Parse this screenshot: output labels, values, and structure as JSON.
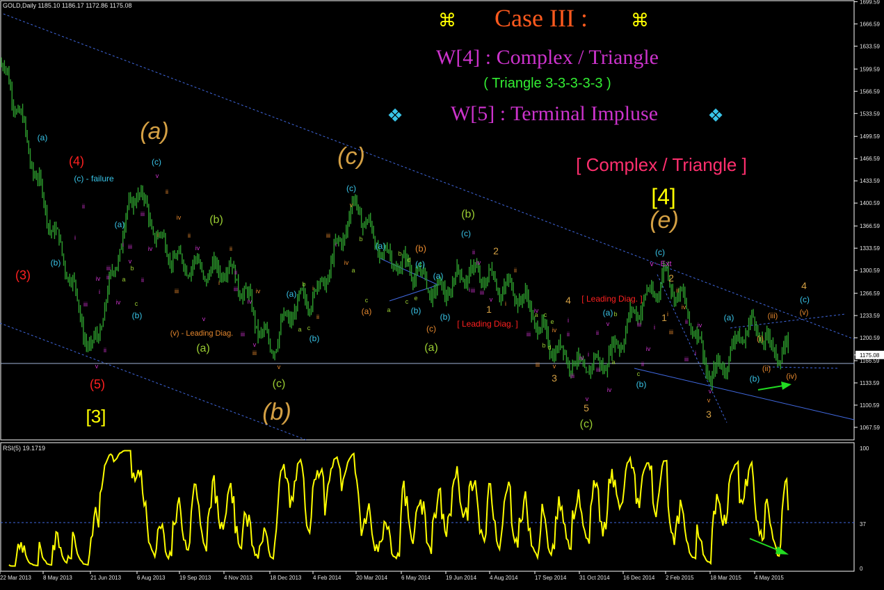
{
  "window": {
    "symbol_line": "GOLD,Daily   1185.10  1186.17  1172.86  1175.08",
    "rsi_label": "RSI(5) 19.1719"
  },
  "headline": {
    "case": "Case III :",
    "case_glyph": "⌘",
    "w4": "W[4] : Complex / Triangle",
    "triangle": "( Triangle 3-3-3-3-3 )",
    "w5": "W[5] : Terminal Impluse",
    "w5_glyph": "❖",
    "complex": "[ Complex / Triangle ]",
    "degree4": "[4]"
  },
  "colors": {
    "background": "#000000",
    "price_bars": "#2e9f2e",
    "rsi_line": "#ffff00",
    "channel": "#4169e1",
    "arrow": "#22dd22",
    "red": "#ff2020",
    "gold": "#d4a044",
    "cyan": "#39c4e8",
    "lime": "#9acd32",
    "magenta": "#cc33cc",
    "orange_roman": "#e6882e"
  },
  "axes": {
    "price_ticks": [
      "1699.59",
      "1666.59",
      "1633.59",
      "1599.59",
      "1566.59",
      "1533.59",
      "1499.59",
      "1466.59",
      "1433.59",
      "1400.59",
      "1366.59",
      "1333.59",
      "1300.59",
      "1266.59",
      "1233.59",
      "1200.59",
      "1175.08",
      "1166.59",
      "1133.59",
      "1100.59",
      "1067.59"
    ],
    "current_price": "1175.08",
    "rsi_ticks": [
      "100",
      "37",
      "0"
    ],
    "date_ticks": [
      "22 Mar 2013",
      "8 May 2013",
      "21 Jun 2013",
      "6 Aug 2013",
      "19 Sep 2013",
      "4 Nov 2013",
      "18 Dec 2013",
      "4 Feb 2014",
      "20 Mar 2014",
      "6 May 2014",
      "19 Jun 2014",
      "4 Aug 2014",
      "17 Sep 2014",
      "31 Oct 2014",
      "16 Dec 2014",
      "2 Feb 2015",
      "18 Mar 2015",
      "4 May 2015"
    ]
  },
  "chart_data": {
    "type": "line",
    "x": [
      "22 Mar 2013",
      "8 May 2013",
      "21 Jun 2013",
      "6 Aug 2013",
      "19 Sep 2013",
      "4 Nov 2013",
      "18 Dec 2013",
      "4 Feb 2014",
      "20 Mar 2014",
      "6 May 2014",
      "19 Jun 2014",
      "4 Aug 2014",
      "17 Sep 2014",
      "31 Oct 2014",
      "16 Dec 2014",
      "2 Feb 2015",
      "18 Mar 2015",
      "4 May 2015"
    ],
    "series": [
      {
        "values": [
          1610,
          1415,
          1180,
          1420,
          1300,
          1310,
          1195,
          1265,
          1390,
          1300,
          1275,
          1300,
          1230,
          1145,
          1200,
          1305,
          1150,
          1215
        ]
      }
    ],
    "ylim": [
      1050,
      1700
    ],
    "rsi_ylim": [
      0,
      100
    ],
    "rsi_level": 37,
    "grid": false
  },
  "annotations": [
    {
      "t": "(3)",
      "c": "red",
      "x": 33,
      "y": 402,
      "s": 18
    },
    {
      "t": "(4)",
      "c": "red",
      "x": 110,
      "y": 238,
      "s": 18
    },
    {
      "t": "(5)",
      "c": "red",
      "x": 140,
      "y": 559,
      "s": 18
    },
    {
      "t": "[3]",
      "c": "yellow",
      "x": 138,
      "y": 608,
      "s": 26
    },
    {
      "t": "(a)",
      "c": "gold",
      "x": 222,
      "y": 200,
      "s": 34,
      "serif": true
    },
    {
      "t": "(c)",
      "c": "gold",
      "x": 505,
      "y": 236,
      "s": 34,
      "serif": true
    },
    {
      "t": "(b)",
      "c": "gold",
      "x": 398,
      "y": 604,
      "s": 34,
      "serif": true
    },
    {
      "t": "(e)",
      "c": "gold",
      "x": 955,
      "y": 328,
      "s": 34,
      "serif": true
    },
    {
      "t": "(a)",
      "c": "cyan",
      "x": 61,
      "y": 202,
      "s": 12
    },
    {
      "t": "(c) - failure",
      "c": "cyan",
      "x": 135,
      "y": 261,
      "s": 12
    },
    {
      "t": "(b)",
      "c": "cyan",
      "x": 80,
      "y": 382,
      "s": 12
    },
    {
      "t": "(c)",
      "c": "cyan",
      "x": 225,
      "y": 237,
      "s": 12
    },
    {
      "t": "(a)",
      "c": "cyan",
      "x": 172,
      "y": 327,
      "s": 12
    },
    {
      "t": "(b)",
      "c": "cyan",
      "x": 197,
      "y": 458,
      "s": 12
    },
    {
      "t": "(b)",
      "c": "lime",
      "x": 311,
      "y": 321,
      "s": 16
    },
    {
      "t": "(a)",
      "c": "lime",
      "x": 292,
      "y": 506,
      "s": 16
    },
    {
      "t": "(v) - Leading Diag.",
      "c": "orange",
      "x": 290,
      "y": 483,
      "s": 11
    },
    {
      "t": "(c)",
      "c": "lime",
      "x": 401,
      "y": 557,
      "s": 16
    },
    {
      "t": "(c)",
      "c": "cyan",
      "x": 505,
      "y": 275,
      "s": 12
    },
    {
      "t": "(a)",
      "c": "cyan",
      "x": 419,
      "y": 427,
      "s": 12
    },
    {
      "t": "(b)",
      "c": "cyan",
      "x": 452,
      "y": 491,
      "s": 12
    },
    {
      "t": "(a)",
      "c": "cyan",
      "x": 547,
      "y": 358,
      "s": 12
    },
    {
      "t": "(b)",
      "c": "orange",
      "x": 605,
      "y": 362,
      "s": 13
    },
    {
      "t": "(c)",
      "c": "cyan",
      "x": 604,
      "y": 384,
      "s": 12
    },
    {
      "t": "(a)",
      "c": "cyan",
      "x": 630,
      "y": 401,
      "s": 12
    },
    {
      "t": "(b)",
      "c": "cyan",
      "x": 598,
      "y": 451,
      "s": 12
    },
    {
      "t": "(b)",
      "c": "cyan",
      "x": 640,
      "y": 460,
      "s": 12
    },
    {
      "t": "(a)",
      "c": "orange",
      "x": 527,
      "y": 452,
      "s": 12
    },
    {
      "t": "(c)",
      "c": "orange",
      "x": 620,
      "y": 477,
      "s": 12
    },
    {
      "t": "(a)",
      "c": "lime",
      "x": 620,
      "y": 505,
      "s": 16
    },
    {
      "t": "(b)",
      "c": "lime",
      "x": 673,
      "y": 313,
      "s": 16
    },
    {
      "t": "(c)",
      "c": "cyan",
      "x": 670,
      "y": 340,
      "s": 12
    },
    {
      "t": "[ Leading Diag. ]",
      "c": "red",
      "x": 701,
      "y": 470,
      "s": 12
    },
    {
      "t": "2",
      "c": "gold",
      "x": 713,
      "y": 366,
      "s": 14
    },
    {
      "t": "1",
      "c": "gold",
      "x": 703,
      "y": 450,
      "s": 14
    },
    {
      "t": "4",
      "c": "gold",
      "x": 817,
      "y": 437,
      "s": 14
    },
    {
      "t": "3",
      "c": "gold",
      "x": 797,
      "y": 549,
      "s": 14
    },
    {
      "t": "5",
      "c": "gold",
      "x": 843,
      "y": 592,
      "s": 14
    },
    {
      "t": "(c)",
      "c": "lime",
      "x": 843,
      "y": 615,
      "s": 16
    },
    {
      "t": "[ Leading Diag. ]",
      "c": "red",
      "x": 880,
      "y": 434,
      "s": 12
    },
    {
      "t": "(a)",
      "c": "cyan",
      "x": 874,
      "y": 454,
      "s": 12
    },
    {
      "t": "(b)",
      "c": "cyan",
      "x": 922,
      "y": 557,
      "s": 12
    },
    {
      "t": "(c)",
      "c": "cyan",
      "x": 949,
      "y": 367,
      "s": 12
    },
    {
      "t": "v - Ext",
      "c": "magenta",
      "x": 950,
      "y": 383,
      "s": 11
    },
    {
      "t": "2",
      "c": "gold",
      "x": 965,
      "y": 405,
      "s": 14
    },
    {
      "t": "1",
      "c": "gold",
      "x": 955,
      "y": 462,
      "s": 14
    },
    {
      "t": "3",
      "c": "gold",
      "x": 1019,
      "y": 601,
      "s": 14
    },
    {
      "t": "(a)",
      "c": "cyan",
      "x": 1048,
      "y": 461,
      "s": 12
    },
    {
      "t": "(b)",
      "c": "cyan",
      "x": 1085,
      "y": 549,
      "s": 12
    },
    {
      "t": "4",
      "c": "gold",
      "x": 1156,
      "y": 416,
      "s": 14
    },
    {
      "t": "(c)",
      "c": "cyan",
      "x": 1157,
      "y": 435,
      "s": 12
    },
    {
      "t": "(v)",
      "c": "orange",
      "x": 1156,
      "y": 453,
      "s": 11
    },
    {
      "t": "(iii)",
      "c": "orange",
      "x": 1111,
      "y": 458,
      "s": 11
    },
    {
      "t": "(i)",
      "c": "orange",
      "x": 1093,
      "y": 491,
      "s": 11
    },
    {
      "t": "(ii)",
      "c": "orange",
      "x": 1102,
      "y": 534,
      "s": 11
    },
    {
      "t": "(iv)",
      "c": "orange",
      "x": 1138,
      "y": 545,
      "s": 11
    }
  ],
  "small_labels": [
    {
      "t": "ii",
      "c": "magenta",
      "x": 120,
      "y": 300
    },
    {
      "t": "i",
      "c": "magenta",
      "x": 108,
      "y": 345
    },
    {
      "t": "iii",
      "c": "magenta",
      "x": 123,
      "y": 441
    },
    {
      "t": "iv",
      "c": "magenta",
      "x": 141,
      "y": 404
    },
    {
      "t": "i",
      "c": "magenta",
      "x": 143,
      "y": 423
    },
    {
      "t": "ii",
      "c": "magenta",
      "x": 151,
      "y": 507
    },
    {
      "t": "v",
      "c": "magenta",
      "x": 139,
      "y": 530
    },
    {
      "t": "iii",
      "c": "magenta",
      "x": 156,
      "y": 389
    },
    {
      "t": "ii",
      "c": "magenta",
      "x": 155,
      "y": 402
    },
    {
      "t": "iv",
      "c": "magenta",
      "x": 170,
      "y": 438
    },
    {
      "t": "i",
      "c": "magenta",
      "x": 177,
      "y": 355
    },
    {
      "t": "iii",
      "c": "magenta",
      "x": 187,
      "y": 358
    },
    {
      "t": "v",
      "c": "magenta",
      "x": 187,
      "y": 379
    },
    {
      "t": "a",
      "c": "lime",
      "x": 178,
      "y": 405
    },
    {
      "t": "b",
      "c": "lime",
      "x": 190,
      "y": 389
    },
    {
      "t": "c",
      "c": "lime",
      "x": 196,
      "y": 440
    },
    {
      "t": "ii",
      "c": "magenta",
      "x": 205,
      "y": 406
    },
    {
      "t": "iii",
      "c": "magenta",
      "x": 205,
      "y": 311
    },
    {
      "t": "iv",
      "c": "magenta",
      "x": 216,
      "y": 361
    },
    {
      "t": "i",
      "c": "orange",
      "x": 227,
      "y": 341
    },
    {
      "t": "v",
      "c": "magenta",
      "x": 226,
      "y": 256
    },
    {
      "t": "ii",
      "c": "orange",
      "x": 240,
      "y": 279
    },
    {
      "t": "iv",
      "c": "orange",
      "x": 257,
      "y": 316
    },
    {
      "t": "iii",
      "c": "orange",
      "x": 254,
      "y": 422
    },
    {
      "t": "ii",
      "c": "orange",
      "x": 272,
      "y": 342
    },
    {
      "t": "v",
      "c": "magenta",
      "x": 293,
      "y": 462
    },
    {
      "t": "ii",
      "c": "orange",
      "x": 332,
      "y": 361
    },
    {
      "t": "iv",
      "c": "magenta",
      "x": 284,
      "y": 360
    },
    {
      "t": "i",
      "c": "orange",
      "x": 315,
      "y": 410
    },
    {
      "t": "ii",
      "c": "magenta",
      "x": 339,
      "y": 395
    },
    {
      "t": "iii",
      "c": "magenta",
      "x": 339,
      "y": 419
    },
    {
      "t": "iv",
      "c": "orange",
      "x": 371,
      "y": 422
    },
    {
      "t": "iv",
      "c": "magenta",
      "x": 359,
      "y": 437
    },
    {
      "t": "iii",
      "c": "magenta",
      "x": 349,
      "y": 484
    },
    {
      "t": "iii",
      "c": "orange",
      "x": 366,
      "y": 511
    },
    {
      "t": "v",
      "c": "magenta",
      "x": 366,
      "y": 499
    },
    {
      "t": "v",
      "c": "orange",
      "x": 401,
      "y": 531
    },
    {
      "t": "a",
      "c": "lime",
      "x": 431,
      "y": 477
    },
    {
      "t": "c",
      "c": "lime",
      "x": 444,
      "y": 475
    },
    {
      "t": "b",
      "c": "lime",
      "x": 437,
      "y": 412
    },
    {
      "t": "i",
      "c": "orange",
      "x": 450,
      "y": 418
    },
    {
      "t": "ii",
      "c": "orange",
      "x": 457,
      "y": 459
    },
    {
      "t": "iii",
      "c": "orange",
      "x": 472,
      "y": 342
    },
    {
      "t": "i",
      "c": "magenta",
      "x": 483,
      "y": 355
    },
    {
      "t": "iv",
      "c": "orange",
      "x": 498,
      "y": 381
    },
    {
      "t": "a",
      "c": "lime",
      "x": 508,
      "y": 392
    },
    {
      "t": "b",
      "c": "lime",
      "x": 519,
      "y": 347
    },
    {
      "t": "c",
      "c": "lime",
      "x": 527,
      "y": 435
    },
    {
      "t": "v",
      "c": "orange",
      "x": 505,
      "y": 298
    },
    {
      "t": "b",
      "c": "lime",
      "x": 575,
      "y": 368
    },
    {
      "t": "d",
      "c": "lime",
      "x": 588,
      "y": 377
    },
    {
      "t": "c",
      "c": "lime",
      "x": 585,
      "y": 437
    },
    {
      "t": "e",
      "c": "lime",
      "x": 598,
      "y": 432
    },
    {
      "t": "a",
      "c": "lime",
      "x": 559,
      "y": 449
    },
    {
      "t": "ii",
      "c": "magenta",
      "x": 681,
      "y": 366
    },
    {
      "t": "iii",
      "c": "magenta",
      "x": 680,
      "y": 421
    },
    {
      "t": "i",
      "c": "magenta",
      "x": 675,
      "y": 420
    },
    {
      "t": "iii",
      "c": "magenta",
      "x": 693,
      "y": 424
    },
    {
      "t": "iv",
      "c": "magenta",
      "x": 688,
      "y": 381
    },
    {
      "t": "v",
      "c": "magenta",
      "x": 706,
      "y": 434
    },
    {
      "t": "i",
      "c": "orange",
      "x": 727,
      "y": 440
    },
    {
      "t": "ii",
      "c": "orange",
      "x": 741,
      "y": 392
    },
    {
      "t": "iii",
      "c": "orange",
      "x": 773,
      "y": 528
    },
    {
      "t": "iv",
      "c": "orange",
      "x": 797,
      "y": 478
    },
    {
      "t": "v",
      "c": "orange",
      "x": 797,
      "y": 530
    },
    {
      "t": "iv",
      "c": "magenta",
      "x": 771,
      "y": 450
    },
    {
      "t": "iii",
      "c": "magenta",
      "x": 760,
      "y": 484
    },
    {
      "t": "a",
      "c": "lime",
      "x": 771,
      "y": 456
    },
    {
      "t": "b",
      "c": "lime",
      "x": 782,
      "y": 500
    },
    {
      "t": "c",
      "c": "lime",
      "x": 784,
      "y": 456
    },
    {
      "t": "d",
      "c": "lime",
      "x": 790,
      "y": 503
    },
    {
      "t": "e",
      "c": "lime",
      "x": 794,
      "y": 466
    },
    {
      "t": "i",
      "c": "magenta",
      "x": 817,
      "y": 464
    },
    {
      "t": "iii",
      "c": "magenta",
      "x": 823,
      "y": 544
    },
    {
      "t": "ii",
      "c": "magenta",
      "x": 817,
      "y": 484
    },
    {
      "t": "iv",
      "c": "magenta",
      "x": 836,
      "y": 518
    },
    {
      "t": "v",
      "c": "magenta",
      "x": 844,
      "y": 577
    },
    {
      "t": "ii",
      "c": "magenta",
      "x": 859,
      "y": 482
    },
    {
      "t": "i",
      "c": "magenta",
      "x": 846,
      "y": 513
    },
    {
      "t": "iii",
      "c": "magenta",
      "x": 860,
      "y": 535
    },
    {
      "t": "iv",
      "c": "magenta",
      "x": 876,
      "y": 564
    },
    {
      "t": "a",
      "c": "lime",
      "x": 882,
      "y": 524
    },
    {
      "t": "b",
      "c": "lime",
      "x": 885,
      "y": 455
    },
    {
      "t": "c",
      "c": "lime",
      "x": 918,
      "y": 541
    },
    {
      "t": "v",
      "c": "magenta",
      "x": 874,
      "y": 469
    },
    {
      "t": "iii",
      "c": "magenta",
      "x": 919,
      "y": 470
    },
    {
      "t": "ii",
      "c": "magenta",
      "x": 924,
      "y": 527
    },
    {
      "t": "iv",
      "c": "magenta",
      "x": 932,
      "y": 505
    },
    {
      "t": "i",
      "c": "magenta",
      "x": 941,
      "y": 474
    },
    {
      "t": "ii",
      "c": "orange",
      "x": 974,
      "y": 421
    },
    {
      "t": "i",
      "c": "orange",
      "x": 960,
      "y": 455
    },
    {
      "t": "iv",
      "c": "orange",
      "x": 983,
      "y": 445
    },
    {
      "t": "iii",
      "c": "orange",
      "x": 965,
      "y": 481
    },
    {
      "t": "ii",
      "c": "magenta",
      "x": 987,
      "y": 466
    },
    {
      "t": "iv",
      "c": "magenta",
      "x": 1006,
      "y": 471
    },
    {
      "t": "iii",
      "c": "magenta",
      "x": 987,
      "y": 520
    },
    {
      "t": "i",
      "c": "magenta",
      "x": 1000,
      "y": 511
    },
    {
      "t": "v",
      "c": "magenta",
      "x": 1021,
      "y": 566
    },
    {
      "t": "v",
      "c": "orange",
      "x": 1019,
      "y": 579
    }
  ]
}
